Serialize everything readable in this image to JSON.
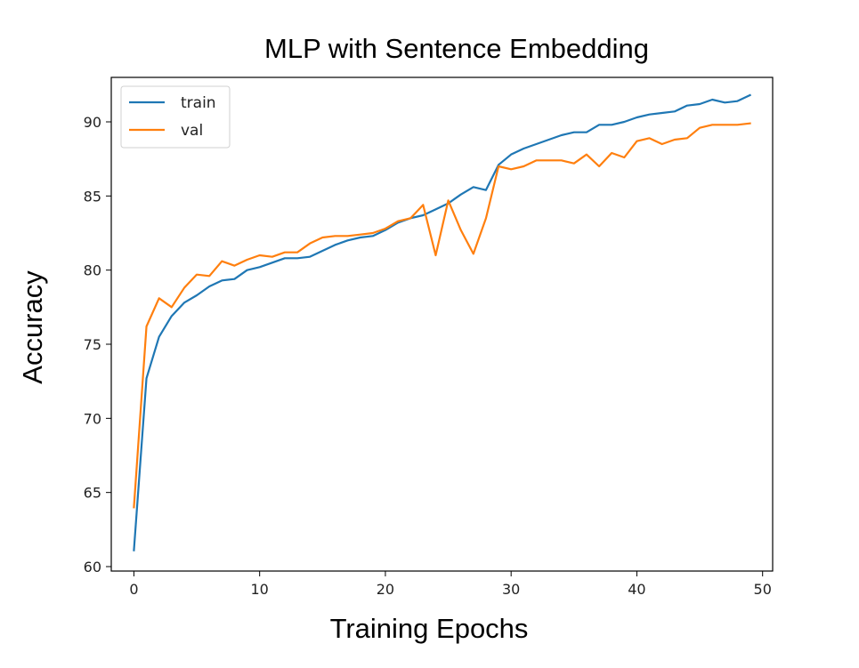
{
  "chart_data": {
    "type": "line",
    "title": "MLP with Sentence Embedding",
    "xlabel": "Training Epochs",
    "ylabel": "Accuracy",
    "xlim": [
      -1.8,
      50.8
    ],
    "ylim": [
      59.7,
      93.0
    ],
    "xticks": [
      0,
      10,
      20,
      30,
      40,
      50
    ],
    "yticks": [
      60,
      65,
      70,
      75,
      80,
      85,
      90
    ],
    "grid": false,
    "legend_position": "top-left",
    "x": [
      0,
      1,
      2,
      3,
      4,
      5,
      6,
      7,
      8,
      9,
      10,
      11,
      12,
      13,
      14,
      15,
      16,
      17,
      18,
      19,
      20,
      21,
      22,
      23,
      24,
      25,
      26,
      27,
      28,
      29,
      30,
      31,
      32,
      33,
      34,
      35,
      36,
      37,
      38,
      39,
      40,
      41,
      42,
      43,
      44,
      45,
      46,
      47,
      48,
      49
    ],
    "series": [
      {
        "name": "train",
        "color": "#1f77b4",
        "values": [
          61.1,
          72.7,
          75.5,
          76.9,
          77.8,
          78.3,
          78.9,
          79.3,
          79.4,
          80.0,
          80.2,
          80.5,
          80.8,
          80.8,
          80.9,
          81.3,
          81.7,
          82.0,
          82.2,
          82.3,
          82.7,
          83.2,
          83.5,
          83.7,
          84.1,
          84.5,
          85.1,
          85.6,
          85.4,
          87.1,
          87.8,
          88.2,
          88.5,
          88.8,
          89.1,
          89.3,
          89.3,
          89.8,
          89.8,
          90.0,
          90.3,
          90.5,
          90.6,
          90.7,
          91.1,
          91.2,
          91.5,
          91.3,
          91.4,
          91.8
        ]
      },
      {
        "name": "val",
        "color": "#ff7f0e",
        "values": [
          64.0,
          76.2,
          78.1,
          77.5,
          78.8,
          79.7,
          79.6,
          80.6,
          80.3,
          80.7,
          81.0,
          80.9,
          81.2,
          81.2,
          81.8,
          82.2,
          82.3,
          82.3,
          82.4,
          82.5,
          82.8,
          83.3,
          83.5,
          84.4,
          81.0,
          84.7,
          82.7,
          81.1,
          83.5,
          87.0,
          86.8,
          87.0,
          87.4,
          87.4,
          87.4,
          87.2,
          87.8,
          87.0,
          87.9,
          87.6,
          88.7,
          88.9,
          88.5,
          88.8,
          88.9,
          89.6,
          89.8,
          89.8,
          89.8,
          89.9
        ]
      }
    ]
  }
}
